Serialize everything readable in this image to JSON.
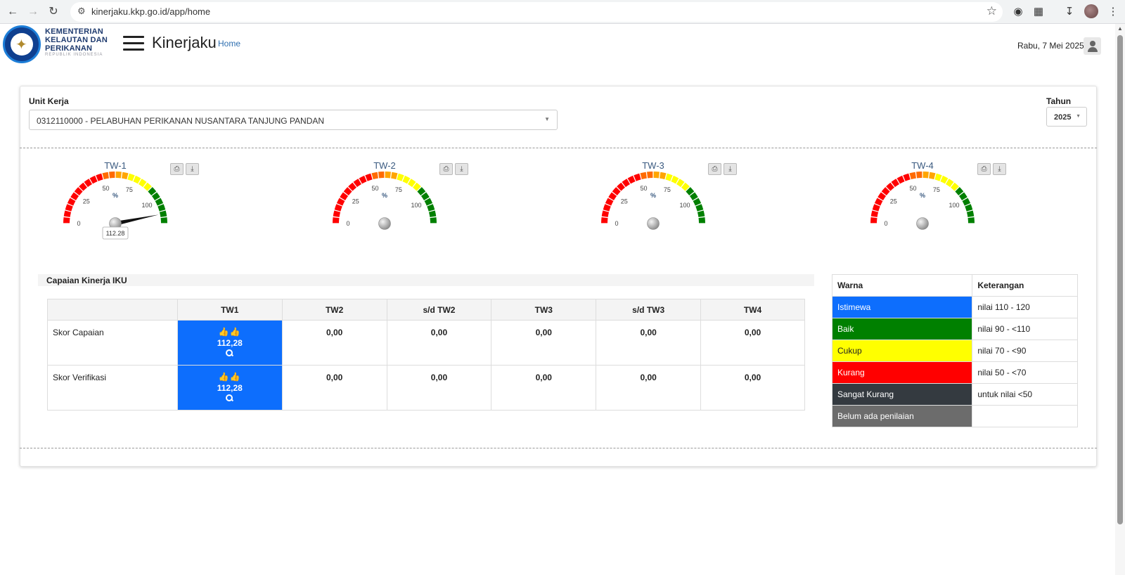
{
  "browser": {
    "url": "kinerjaku.kkp.go.id/app/home"
  },
  "header": {
    "logo_lines": [
      "KEMENTERIAN",
      "KELAUTAN DAN",
      "PERIKANAN"
    ],
    "logo_sub": "REPUBLIK INDONESIA",
    "app_title": "Kinerjaku",
    "home_link": "Home",
    "date": "Rabu, 7 Mei 2025"
  },
  "filters": {
    "unit_label": "Unit Kerja",
    "unit_value": "0312110000 - PELABUHAN PERIKANAN NUSANTARA TANJUNG PANDAN",
    "tahun_label": "Tahun",
    "tahun_value": "2025"
  },
  "gauges": [
    {
      "title": "TW-1",
      "unit": "%",
      "value": 112.28,
      "value_label": "112.28"
    },
    {
      "title": "TW-2",
      "unit": "%",
      "value": null,
      "value_label": ""
    },
    {
      "title": "TW-3",
      "unit": "%",
      "value": null,
      "value_label": ""
    },
    {
      "title": "TW-4",
      "unit": "%",
      "value": null,
      "value_label": ""
    }
  ],
  "gauge_ticks": [
    "0",
    "25",
    "50",
    "75",
    "100"
  ],
  "gauge_scale": {
    "min": 0,
    "max": 120
  },
  "colors": {
    "istimewa": "#0d6efd",
    "baik": "#008000",
    "cukup": "#ffff00",
    "kurang": "#ff0000",
    "sangat_kurang": "#343a40",
    "belum": "#6c6c6c"
  },
  "iku": {
    "title": "Capaian Kinerja IKU",
    "columns": [
      "",
      "TW1",
      "TW2",
      "s/d TW2",
      "TW3",
      "s/d TW3",
      "TW4"
    ],
    "rows": [
      {
        "label": "Skor Capaian",
        "tw1": "112,28",
        "values": [
          "0,00",
          "0,00",
          "0,00",
          "0,00",
          "0,00"
        ]
      },
      {
        "label": "Skor Verifikasi",
        "tw1": "112,28",
        "values": [
          "0,00",
          "0,00",
          "0,00",
          "0,00",
          "0,00"
        ]
      }
    ]
  },
  "legend": {
    "headers": [
      "Warna",
      "Keterangan"
    ],
    "rows": [
      {
        "label": "Istimewa",
        "desc": "nilai 110 - 120",
        "color": "#0d6efd",
        "text_color": "#ffffff"
      },
      {
        "label": "Baik",
        "desc": "nilai 90 - <110",
        "color": "#008000",
        "text_color": "#ffffff"
      },
      {
        "label": "Cukup",
        "desc": "nilai 70 - <90",
        "color": "#ffff00",
        "text_color": "#222222"
      },
      {
        "label": "Kurang",
        "desc": "nilai 50 - <70",
        "color": "#ff0000",
        "text_color": "#ffffff"
      },
      {
        "label": "Sangat Kurang",
        "desc": "untuk nilai <50",
        "color": "#343a40",
        "text_color": "#ffffff"
      },
      {
        "label": "Belum ada penilaian",
        "desc": "",
        "color": "#6c6c6c",
        "text_color": "#ffffff"
      }
    ]
  }
}
